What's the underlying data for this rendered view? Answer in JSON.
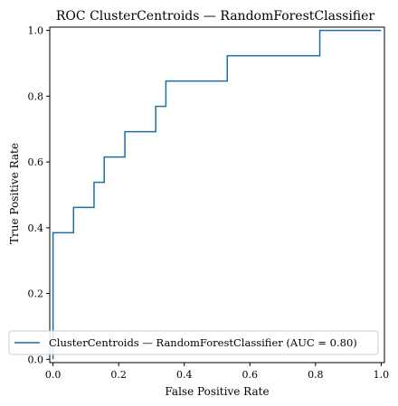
{
  "chart_data": {
    "type": "line",
    "title": "ROC ClusterCentroids — RandomForestClassifier",
    "xlabel": "False Positive Rate",
    "ylabel": "True Positive Rate",
    "xlim": [
      -0.01,
      1.01
    ],
    "ylim": [
      -0.01,
      1.01
    ],
    "xticks": [
      0.0,
      0.2,
      0.4,
      0.6,
      0.8,
      1.0
    ],
    "yticks": [
      0.0,
      0.2,
      0.4,
      0.6,
      0.8,
      1.0
    ],
    "xtick_labels": [
      "0.0",
      "0.2",
      "0.4",
      "0.6",
      "0.8",
      "1.0"
    ],
    "ytick_labels": [
      "0.0",
      "0.2",
      "0.4",
      "0.6",
      "0.8",
      "1.0"
    ],
    "grid": false,
    "legend_position": "lower-right",
    "series": [
      {
        "name": "ClusterCentroids — RandomForestClassifier (AUC = 0.80)",
        "color": "#1f6f9f",
        "x": [
          0.0,
          0.0,
          0.0,
          0.0625,
          0.0625,
          0.125,
          0.125,
          0.156,
          0.156,
          0.219,
          0.219,
          0.313,
          0.313,
          0.344,
          0.344,
          0.531,
          0.531,
          0.813,
          0.813,
          1.0
        ],
        "y": [
          0.0,
          0.077,
          0.385,
          0.385,
          0.462,
          0.462,
          0.538,
          0.538,
          0.615,
          0.615,
          0.692,
          0.692,
          0.769,
          0.769,
          0.846,
          0.846,
          0.923,
          0.923,
          1.0,
          1.0
        ]
      }
    ]
  }
}
